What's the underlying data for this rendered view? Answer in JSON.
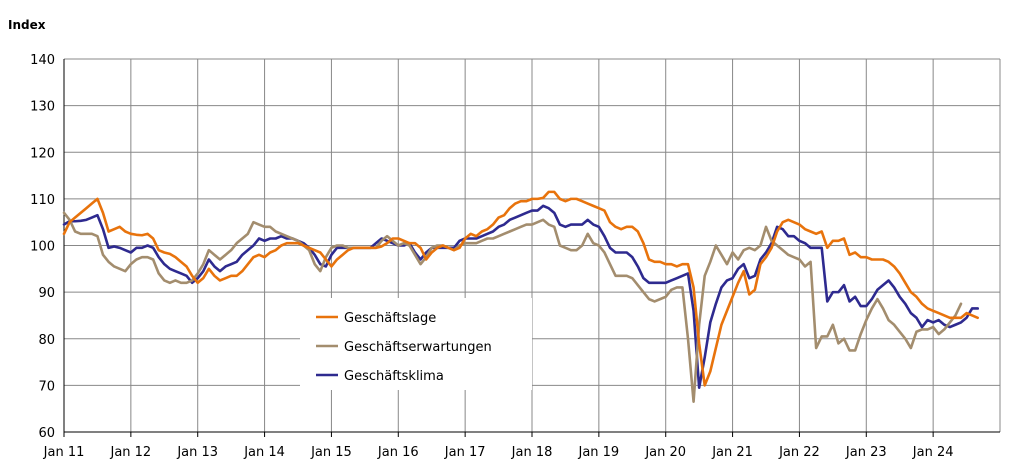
{
  "chart_data": {
    "type": "line",
    "ylabel": "Index",
    "xlabel": "",
    "title": "",
    "ylim": [
      60,
      140
    ],
    "yticks": [
      60,
      70,
      80,
      90,
      100,
      110,
      120,
      130,
      140
    ],
    "x_start": "Jan 11",
    "x_end": "Jun 24",
    "xtick_labels": [
      "Jan 11",
      "Jan 12",
      "Jan 13",
      "Jan 14",
      "Jan 15",
      "Jan 16",
      "Jan 17",
      "Jan 18",
      "Jan 19",
      "Jan 20",
      "Jan 21",
      "Jan 22",
      "Jan 23",
      "Jan 24"
    ],
    "grid": true,
    "legend_position": "center-left",
    "series": [
      {
        "name": "Geschäftslage",
        "color": "#E8730C",
        "values": [
          102.5,
          105,
          106,
          107,
          108,
          109,
          110,
          107,
          103,
          103.5,
          104,
          103,
          102.5,
          102.3,
          102.2,
          102.5,
          101.5,
          99,
          98.5,
          98.2,
          97.5,
          96.5,
          95.5,
          93.5,
          92,
          93,
          95,
          93.5,
          92.5,
          93,
          93.5,
          93.5,
          94.5,
          96,
          97.5,
          98,
          97.5,
          98.5,
          99,
          100,
          100.5,
          100.5,
          100.5,
          100,
          99.5,
          99,
          98.5,
          97,
          95.5,
          97,
          98,
          99,
          99.5,
          99.5,
          99.5,
          99.5,
          99.5,
          99.8,
          100.5,
          101.5,
          101.5,
          101,
          100.5,
          100.5,
          99.5,
          97,
          98.5,
          99.5,
          100,
          99.5,
          99,
          99.5,
          101.5,
          102.5,
          102,
          103,
          103.5,
          104.5,
          106,
          106.5,
          108,
          109,
          109.5,
          109.5,
          110,
          110,
          110.2,
          111.5,
          111.5,
          110,
          109.5,
          110,
          110,
          109.5,
          109,
          108.5,
          108,
          107.5,
          105,
          104,
          103.5,
          104,
          104,
          103,
          100.5,
          97,
          96.5,
          96.5,
          96,
          96,
          95.5,
          96,
          96,
          91,
          79,
          70,
          73,
          78,
          83,
          86,
          89,
          92,
          94.5,
          89.5,
          90.5,
          96,
          97.5,
          99.5,
          103,
          105,
          105.5,
          105,
          104.5,
          103.5,
          103,
          102.5,
          103,
          99.5,
          101,
          101,
          101.5,
          98,
          98.5,
          97.5,
          97.5,
          97,
          97,
          97,
          96.5,
          95.5,
          94,
          92,
          90,
          89,
          87.5,
          86.5,
          86,
          85.5,
          85,
          84.5,
          84.5,
          84.5,
          85.5,
          85,
          84.5
        ]
      },
      {
        "name": "Geschäftserwartungen",
        "color": "#A38D6E",
        "values": [
          107,
          105.5,
          103,
          102.5,
          102.5,
          102.5,
          102,
          98,
          96.5,
          95.5,
          95,
          94.5,
          96,
          97,
          97.5,
          97.5,
          97,
          94,
          92.5,
          92,
          92.5,
          92,
          92,
          92.5,
          94,
          96,
          99,
          98,
          97,
          98,
          99,
          100.5,
          101.5,
          102.5,
          105,
          104.5,
          104,
          104,
          103,
          102.5,
          102,
          101.5,
          101,
          100,
          99,
          96,
          94.5,
          97.5,
          99.5,
          100,
          100,
          99.5,
          99.5,
          99.5,
          99.5,
          99.5,
          99.5,
          101,
          102,
          101,
          100,
          100.5,
          100,
          98,
          96,
          97.5,
          99.5,
          100,
          100,
          99.5,
          99,
          100,
          100.5,
          100.5,
          100.5,
          101,
          101.5,
          101.5,
          102,
          102.5,
          103,
          103.5,
          104,
          104.5,
          104.5,
          105,
          105.5,
          104.5,
          104,
          100,
          99.5,
          99,
          99,
          100,
          102.5,
          100.5,
          100,
          98.5,
          96,
          93.5,
          93.5,
          93.5,
          93,
          91.5,
          90,
          88.5,
          88,
          88.5,
          89,
          90.5,
          91,
          91,
          80,
          66.5,
          83,
          93.5,
          96.5,
          100,
          98,
          96,
          98.5,
          97,
          99,
          99.5,
          99,
          100,
          104,
          101,
          100,
          99,
          98,
          97.5,
          97,
          95.5,
          96.5,
          78,
          80.5,
          80.5,
          83,
          79,
          80,
          77.5,
          77.5,
          81,
          84,
          86.5,
          88.5,
          86.5,
          84,
          83,
          81.5,
          80,
          78,
          81.5,
          82,
          82,
          82.5,
          81,
          82,
          83.5,
          85,
          87.5
        ]
      },
      {
        "name": "Geschäftsklima",
        "color": "#2E2A8F",
        "values": [
          104.5,
          105.2,
          105.2,
          105.3,
          105.5,
          106,
          106.5,
          103.5,
          99.5,
          99.8,
          99.5,
          99,
          98.5,
          99.5,
          99.5,
          100,
          99.5,
          97.5,
          96,
          95,
          94.5,
          94,
          93.5,
          92,
          93,
          94.5,
          97,
          95.5,
          94.5,
          95.5,
          96,
          96.5,
          98,
          99,
          100,
          101.5,
          101,
          101.5,
          101.5,
          102,
          101.5,
          101.5,
          101,
          100.5,
          99.5,
          98,
          96,
          95.5,
          98,
          99.5,
          99.5,
          99.5,
          99.5,
          99.5,
          99.5,
          99.5,
          100.5,
          101.5,
          101,
          100.5,
          100,
          100,
          100.5,
          98.5,
          97,
          98.5,
          99.5,
          99.5,
          99.5,
          99.5,
          99.5,
          101,
          101.5,
          101.5,
          101.5,
          102,
          102.5,
          103,
          104,
          104.5,
          105.5,
          106,
          106.5,
          107,
          107.5,
          107.5,
          108.5,
          108,
          107,
          104.5,
          104,
          104.5,
          104.5,
          104.5,
          105.5,
          104.5,
          104,
          102,
          99.5,
          98.5,
          98.5,
          98.5,
          97.5,
          95.5,
          93,
          92,
          92,
          92,
          92,
          92.5,
          93,
          93.5,
          94,
          86,
          69.5,
          76,
          83.5,
          87.5,
          91,
          92.5,
          93,
          95,
          96,
          93,
          93.5,
          97,
          98.5,
          100.5,
          104,
          103.5,
          102,
          102,
          101,
          100.5,
          99.5,
          99.5,
          99.5,
          88,
          90,
          90,
          91.5,
          88,
          89,
          87,
          87,
          88.5,
          90.5,
          91.5,
          92.5,
          91,
          89,
          87.5,
          85.5,
          84.5,
          82.5,
          84,
          83.5,
          84,
          83,
          82.5,
          83,
          83.5,
          84.5,
          86.5,
          86.5
        ]
      }
    ]
  }
}
